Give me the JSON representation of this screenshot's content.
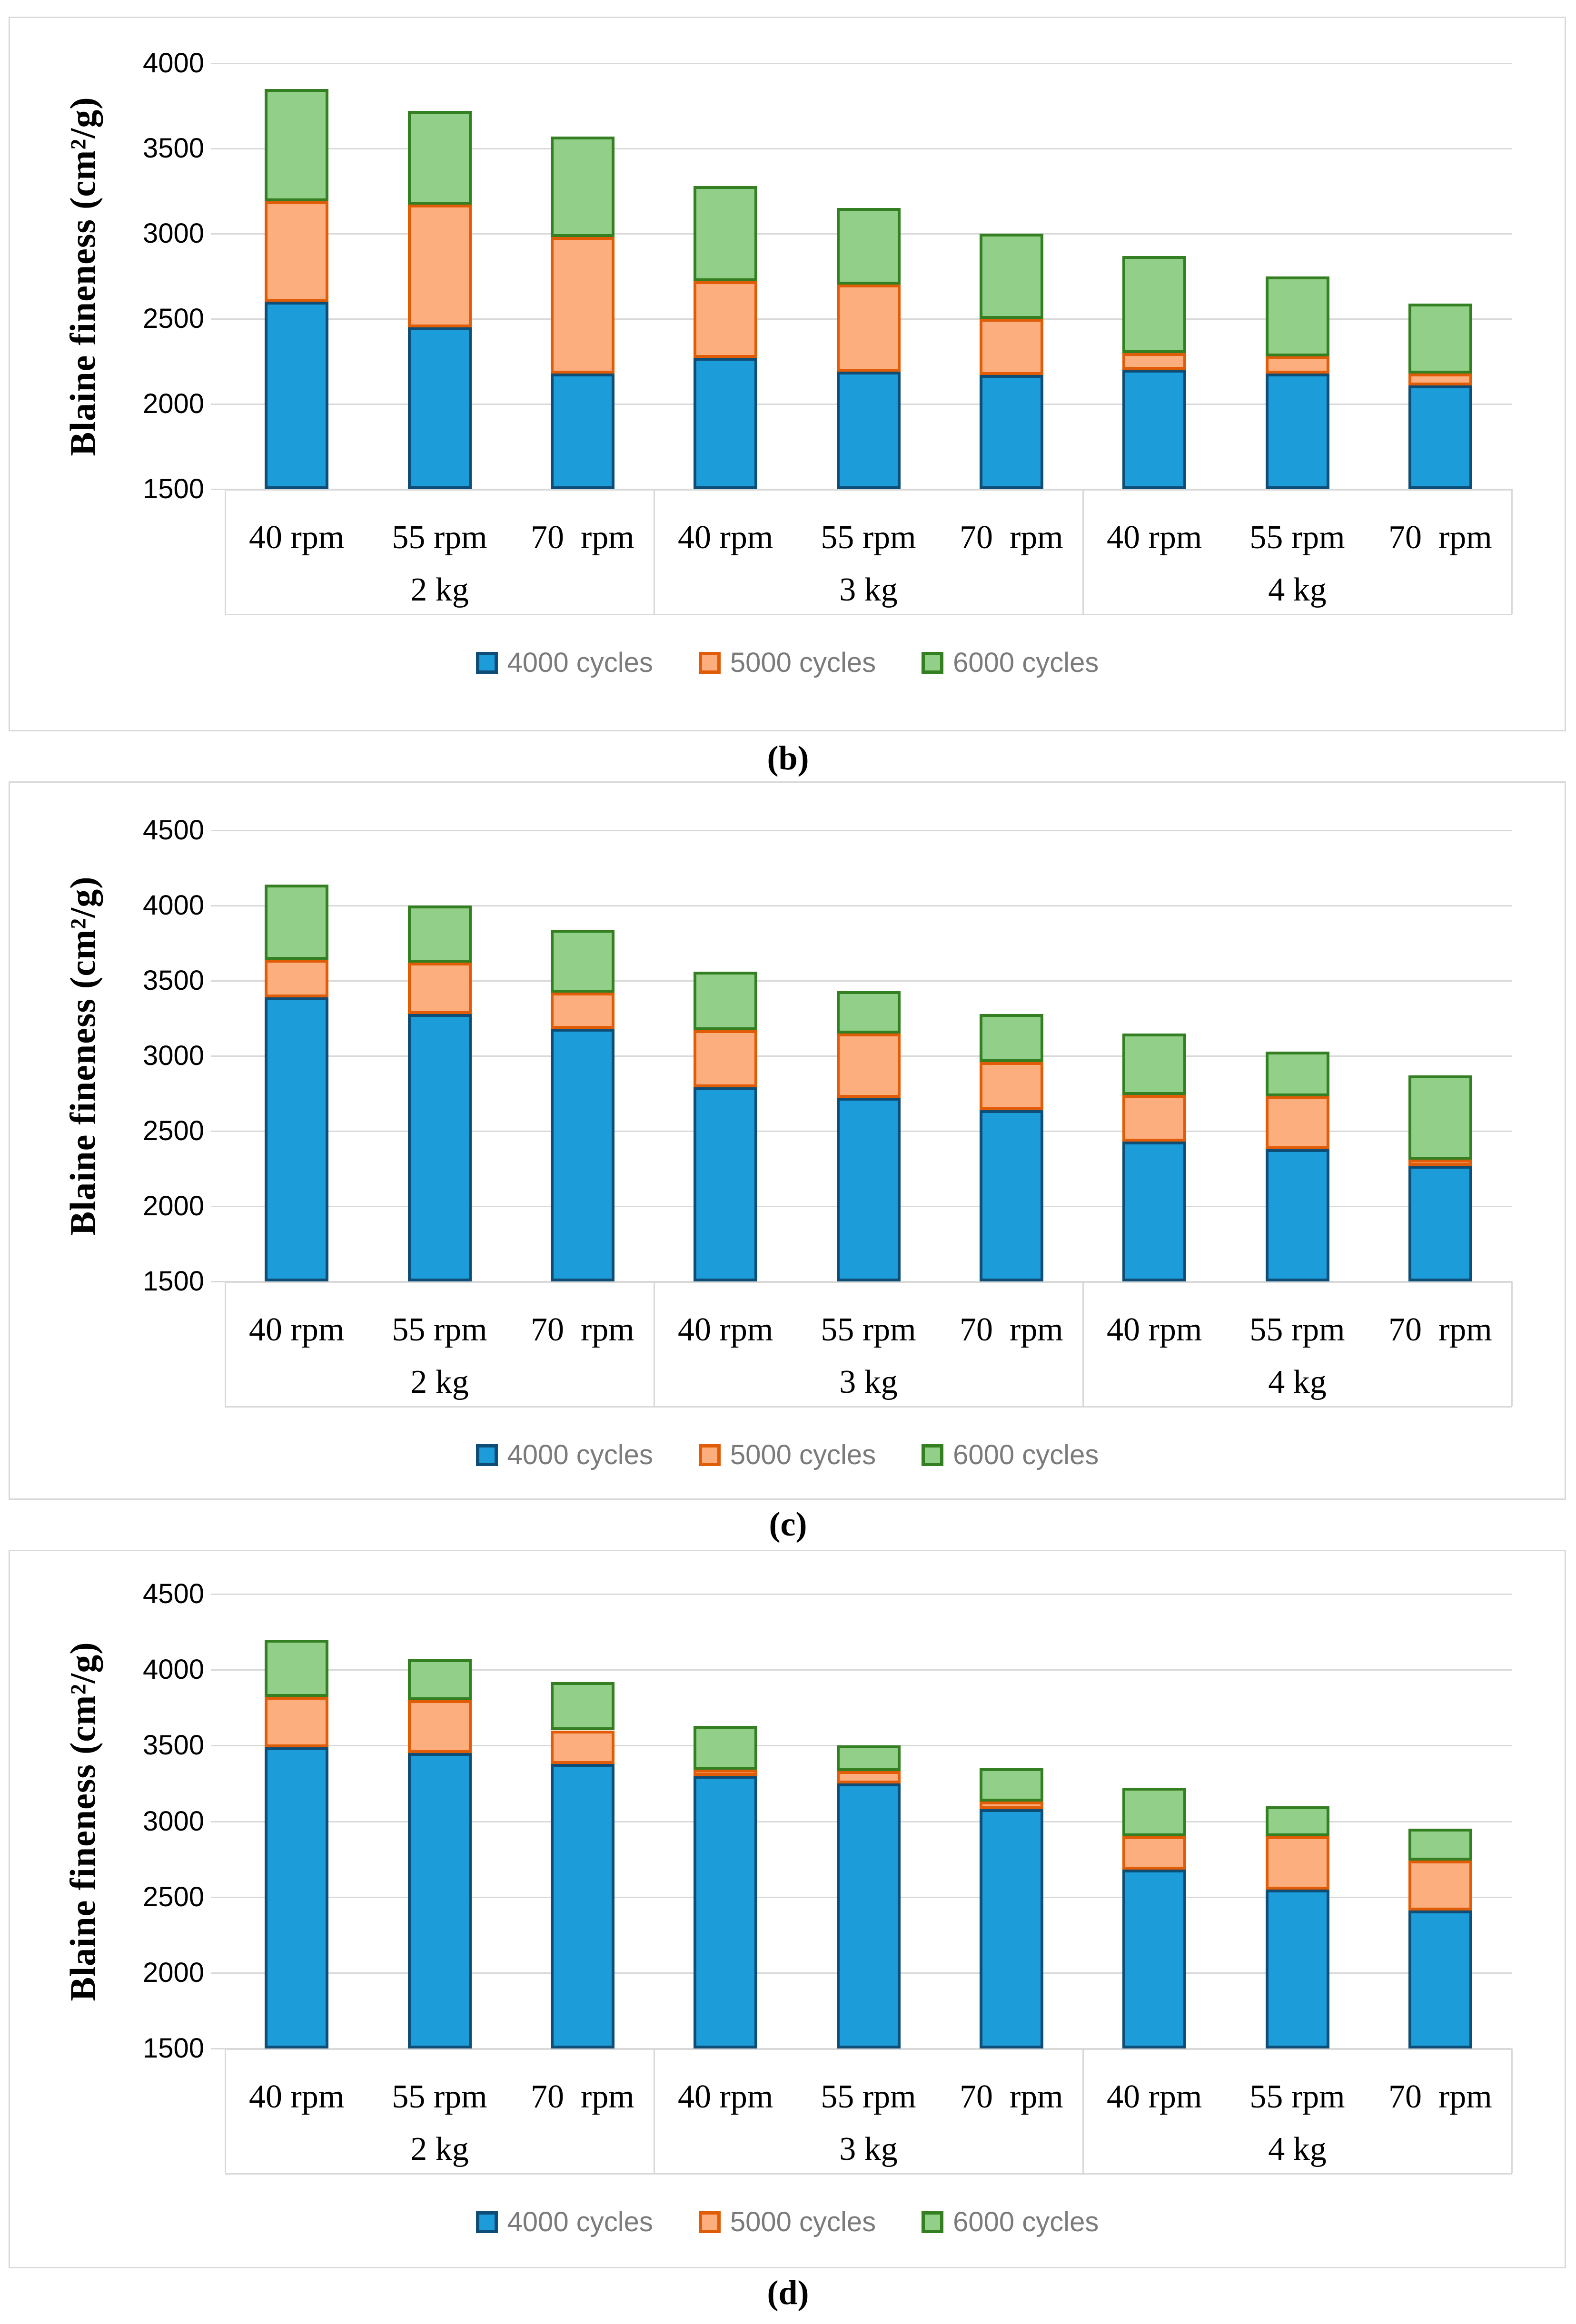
{
  "colors": {
    "background": "#FFFFFF",
    "panel_border": "#D9D9D9",
    "gridline": "#D9D9D9",
    "tick_text": "#000000",
    "legend_text": "#7B7B7B"
  },
  "legend": {
    "items": [
      {
        "label": "4000 cycles",
        "fill": "#1C9CD9",
        "border": "#0E4D75"
      },
      {
        "label": "5000 cycles",
        "fill": "#FCAE7E",
        "border": "#E05C07"
      },
      {
        "label": "6000 cycles",
        "fill": "#92CF88",
        "border": "#337F21"
      }
    ]
  },
  "chart_data": [
    {
      "id": "b",
      "caption": "(b)",
      "type": "bar",
      "stacked": true,
      "grid": true,
      "legend_position": "bottom",
      "ylabel": "Blaine fineness (cm²/g)",
      "ylim": [
        1500,
        4000
      ],
      "yticks": [
        4000,
        3500,
        3000,
        2500,
        2000,
        1500
      ],
      "group_labels": [
        "2 kg",
        "3 kg",
        "4 kg"
      ],
      "categories": [
        "40 rpm",
        "55 rpm",
        "70  rpm",
        "40 rpm",
        "55 rpm",
        "70  rpm",
        "40 rpm",
        "55 rpm",
        "70  rpm"
      ],
      "series": [
        {
          "name": "4000 cycles",
          "values": [
            2600,
            2450,
            2180,
            2270,
            2190,
            2170,
            2200,
            2180,
            2110
          ]
        },
        {
          "name": "5000 cycles",
          "values": [
            3190,
            3170,
            2980,
            2720,
            2700,
            2500,
            2300,
            2280,
            2180
          ]
        },
        {
          "name": "6000 cycles",
          "values": [
            3850,
            3720,
            3570,
            3280,
            3150,
            3000,
            2870,
            2750,
            2590
          ]
        }
      ],
      "note": "series values are cumulative Blaine fineness tops; segments drawn between consecutive series"
    },
    {
      "id": "c",
      "caption": "(c)",
      "type": "bar",
      "stacked": true,
      "grid": true,
      "legend_position": "bottom",
      "ylabel": "Blaine fineness (cm²/g)",
      "ylim": [
        1500,
        4500
      ],
      "yticks": [
        4500,
        4000,
        3500,
        3000,
        2500,
        2000,
        1500
      ],
      "group_labels": [
        "2 kg",
        "3 kg",
        "4 kg"
      ],
      "categories": [
        "40 rpm",
        "55 rpm",
        "70  rpm",
        "40 rpm",
        "55 rpm",
        "70  rpm",
        "40 rpm",
        "55 rpm",
        "70  rpm"
      ],
      "series": [
        {
          "name": "4000 cycles",
          "values": [
            3390,
            3280,
            3180,
            2790,
            2720,
            2640,
            2430,
            2380,
            2270
          ]
        },
        {
          "name": "5000 cycles",
          "values": [
            3640,
            3620,
            3420,
            3170,
            3150,
            2960,
            2740,
            2730,
            2310
          ]
        },
        {
          "name": "6000 cycles",
          "values": [
            4140,
            4000,
            3840,
            3560,
            3430,
            3280,
            3150,
            3030,
            2870
          ]
        }
      ],
      "note": "series values are cumulative Blaine fineness tops; segments drawn between consecutive series"
    },
    {
      "id": "d",
      "caption": "(d)",
      "type": "bar",
      "stacked": true,
      "grid": true,
      "legend_position": "bottom",
      "ylabel": "Blaine fineness (cm²/g)",
      "ylim": [
        1500,
        4500
      ],
      "yticks": [
        4500,
        4000,
        3500,
        3000,
        2500,
        2000,
        1500
      ],
      "group_labels": [
        "2 kg",
        "3 kg",
        "4 kg"
      ],
      "categories": [
        "40 rpm",
        "55 rpm",
        "70  rpm",
        "40 rpm",
        "55 rpm",
        "70  rpm",
        "40 rpm",
        "55 rpm",
        "70  rpm"
      ],
      "series": [
        {
          "name": "4000 cycles",
          "values": [
            3490,
            3450,
            3380,
            3300,
            3250,
            3080,
            2680,
            2550,
            2410
          ]
        },
        {
          "name": "5000 cycles",
          "values": [
            3820,
            3800,
            3600,
            3340,
            3330,
            3130,
            2900,
            2900,
            2740
          ]
        },
        {
          "name": "6000 cycles",
          "values": [
            4200,
            4070,
            3920,
            3630,
            3500,
            3350,
            3220,
            3100,
            2950
          ]
        }
      ],
      "note": "series values are cumulative Blaine fineness tops; segments drawn between consecutive series"
    }
  ]
}
